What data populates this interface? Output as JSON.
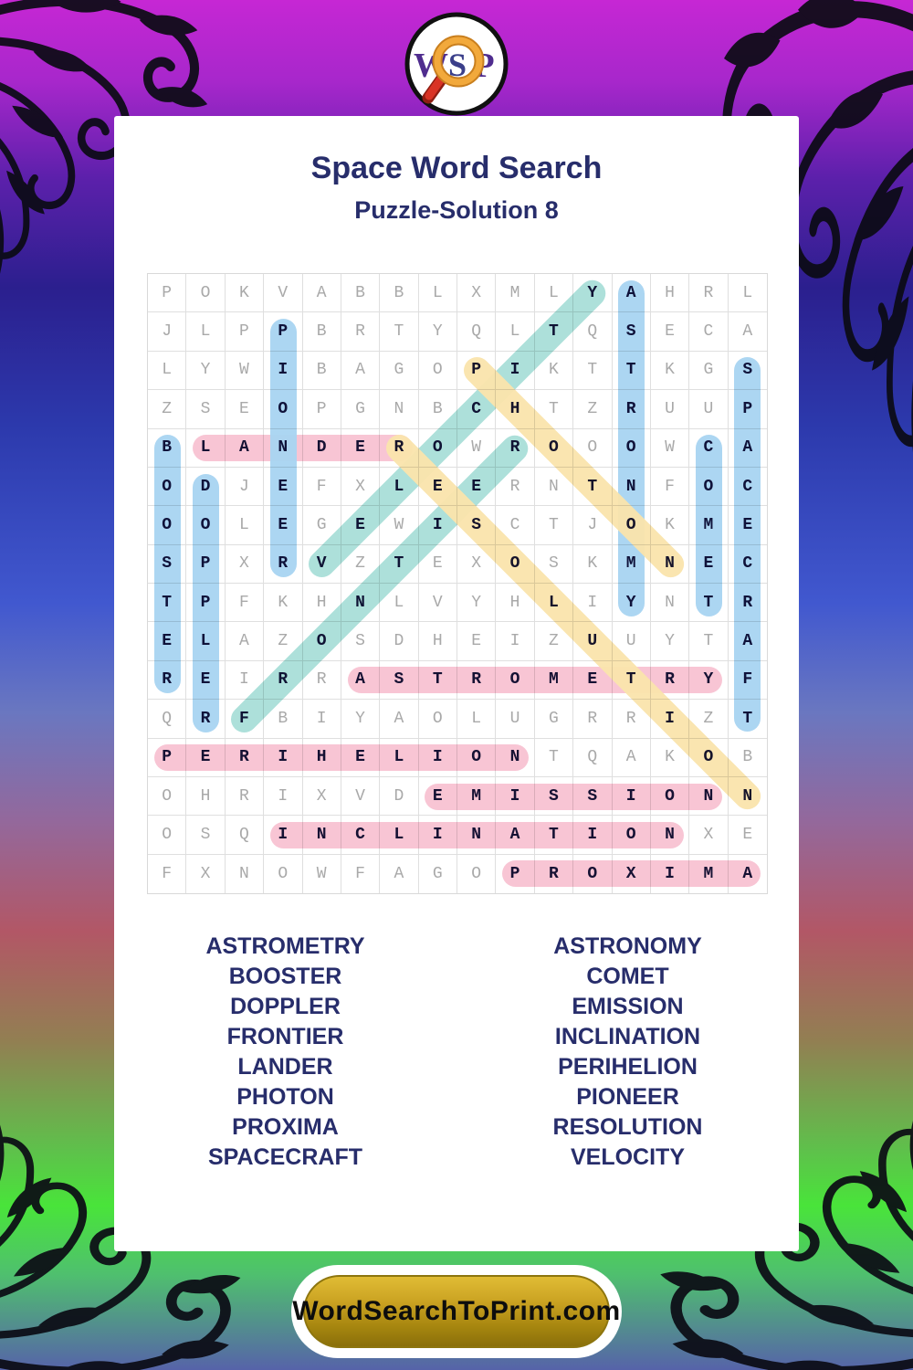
{
  "logo": {
    "letters": [
      "W",
      "S",
      "P"
    ]
  },
  "header": {
    "title": "Space Word Search",
    "subtitle": "Puzzle-Solution 8"
  },
  "grid": {
    "size": 16,
    "rows": [
      "POKVABBLXMLYAHRL",
      "JLPPBRTYQLTQSECA",
      "LYWIBAGOPIKTTKGS",
      "ZSEOPGNBCHTZRUUP",
      "BLANDEROWROOOWCA",
      "ODJEFXLEERNTNFOC",
      "OOLEGEWISCTJOKME",
      "SPXRVZTEXOSKMNEC",
      "TPFKHNLVYHLIYNTR",
      "ELAZOSDHEIZUUYTA",
      "REIRRASTROMETRYF",
      "QRFBIYAOLUGRRIZT",
      "PERIHELIONTQAKOB",
      "OHRIXVDEMISSIONN",
      "OSQINCLINATIONXE",
      "FXNOWFAGOPROXIMA"
    ]
  },
  "solutions": [
    {
      "word": "LANDER",
      "row": 5,
      "col": 2,
      "dir": "E",
      "color": "pink"
    },
    {
      "word": "ASTROMETRY",
      "row": 11,
      "col": 6,
      "dir": "E",
      "color": "pink"
    },
    {
      "word": "PERIHELION",
      "row": 13,
      "col": 1,
      "dir": "E",
      "color": "pink"
    },
    {
      "word": "EMISSION",
      "row": 14,
      "col": 8,
      "dir": "E",
      "color": "pink"
    },
    {
      "word": "INCLINATION",
      "row": 15,
      "col": 4,
      "dir": "E",
      "color": "pink"
    },
    {
      "word": "PROXIMA",
      "row": 16,
      "col": 10,
      "dir": "E",
      "color": "pink"
    },
    {
      "word": "BOOSTER",
      "row": 5,
      "col": 1,
      "dir": "S",
      "color": "blue"
    },
    {
      "word": "DOPPLER",
      "row": 6,
      "col": 2,
      "dir": "S",
      "color": "blue"
    },
    {
      "word": "PIONEER",
      "row": 2,
      "col": 4,
      "dir": "S",
      "color": "blue"
    },
    {
      "word": "ASTRONOMY",
      "row": 1,
      "col": 13,
      "dir": "S",
      "color": "blue"
    },
    {
      "word": "COMET",
      "row": 5,
      "col": 15,
      "dir": "S",
      "color": "blue"
    },
    {
      "word": "SPACECRAFT",
      "row": 3,
      "col": 16,
      "dir": "S",
      "color": "blue"
    },
    {
      "word": "VELOCITY",
      "row": 8,
      "col": 5,
      "dir": "NE",
      "color": "teal"
    },
    {
      "word": "FRONTIER",
      "row": 12,
      "col": 3,
      "dir": "NE",
      "color": "teal"
    },
    {
      "word": "PHOTON",
      "row": 3,
      "col": 9,
      "dir": "SE",
      "color": "yellow"
    },
    {
      "word": "RESOLUTION",
      "row": 5,
      "col": 7,
      "dir": "SE",
      "color": "yellow"
    }
  ],
  "highlight_colors": {
    "pink": "#f8c3d2",
    "blue": "#a9d4f1",
    "teal": "#aadfd8",
    "yellow": "#fae4ad"
  },
  "word_list": {
    "left": [
      "ASTROMETRY",
      "BOOSTER",
      "DOPPLER",
      "FRONTIER",
      "LANDER",
      "PHOTON",
      "PROXIMA",
      "SPACECRAFT"
    ],
    "right": [
      "ASTRONOMY",
      "COMET",
      "EMISSION",
      "INCLINATION",
      "PERIHELION",
      "PIONEER",
      "RESOLUTION",
      "VELOCITY"
    ]
  },
  "footer": {
    "button_label": "WordSearchToPrint.com"
  },
  "theme": {
    "title_color": "#272d6b",
    "grid_letter_color": "#a9a9a9",
    "grid_solution_color": "#15153d",
    "button_gold": "#c9a121"
  }
}
